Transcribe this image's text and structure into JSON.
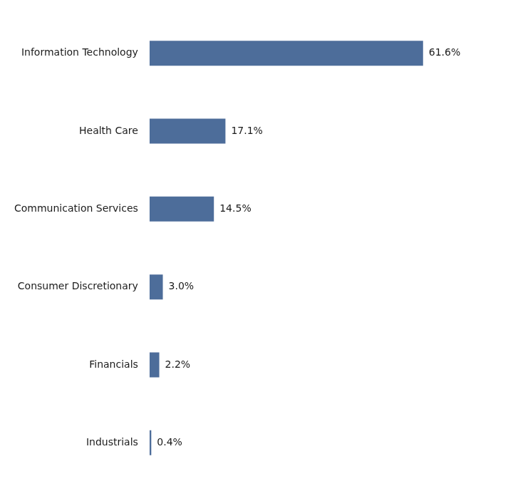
{
  "chart_data": {
    "type": "bar",
    "orientation": "horizontal",
    "categories": [
      "Information Technology",
      "Health Care",
      "Communication Services",
      "Consumer Discretionary",
      "Financials",
      "Industrials"
    ],
    "values": [
      61.6,
      17.1,
      14.5,
      3.0,
      2.2,
      0.4
    ],
    "value_labels": [
      "61.6%",
      "17.1%",
      "14.5%",
      "3.0%",
      "2.2%",
      "0.4%"
    ],
    "color": "#4d6d9a",
    "xlim": [
      0,
      78
    ],
    "data_labels": true,
    "tick_labels": "y",
    "grid": false
  }
}
